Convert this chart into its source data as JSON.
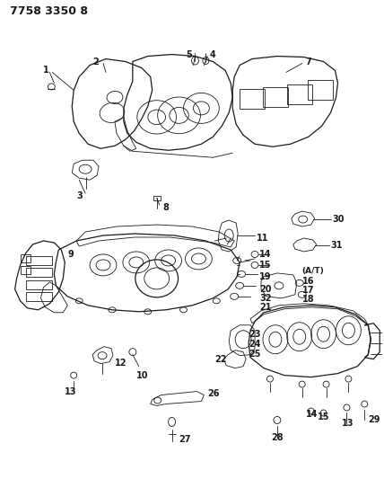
{
  "title": "7758 3350 8",
  "bg_color": "#ffffff",
  "line_color": "#1a1a1a",
  "fig_width": 4.28,
  "fig_height": 5.33,
  "dpi": 100
}
